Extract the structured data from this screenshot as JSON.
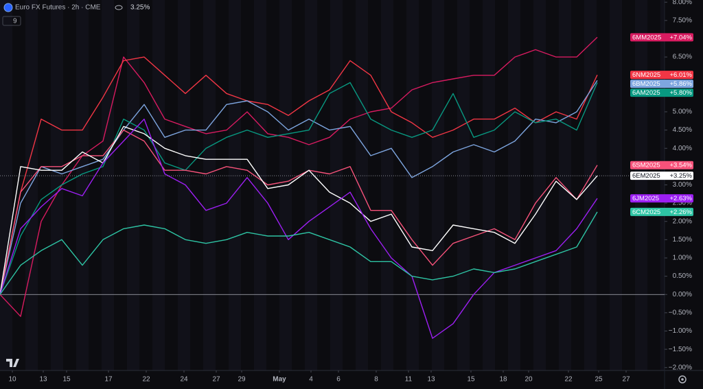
{
  "chart_data": {
    "type": "line",
    "header": {
      "title": "Euro FX Futures · 2h · CME",
      "change": "3.25%",
      "indicator_count": "9"
    },
    "x": [
      0,
      3,
      6,
      9,
      12,
      15,
      18,
      21,
      24,
      27,
      30,
      33,
      36,
      39,
      42,
      45,
      48,
      51,
      54,
      57,
      60,
      63,
      66,
      69,
      72,
      75,
      78,
      81,
      84,
      87
    ],
    "xlim": [
      0,
      96.8
    ],
    "xticks": [
      {
        "value": 1.8,
        "label": "10"
      },
      {
        "value": 6.3,
        "label": "13"
      },
      {
        "value": 9.7,
        "label": "15"
      },
      {
        "value": 15.8,
        "label": "17"
      },
      {
        "value": 21.3,
        "label": "22"
      },
      {
        "value": 26.8,
        "label": "24"
      },
      {
        "value": 31.5,
        "label": "27"
      },
      {
        "value": 35.2,
        "label": "29"
      },
      {
        "value": 40.7,
        "label": "May"
      },
      {
        "value": 45.3,
        "label": "4"
      },
      {
        "value": 49.3,
        "label": "6"
      },
      {
        "value": 54.8,
        "label": "8"
      },
      {
        "value": 59.5,
        "label": "11"
      },
      {
        "value": 62.8,
        "label": "13"
      },
      {
        "value": 68.6,
        "label": "15"
      },
      {
        "value": 73.3,
        "label": "18"
      },
      {
        "value": 77,
        "label": "20"
      },
      {
        "value": 82.8,
        "label": "22"
      },
      {
        "value": 87.2,
        "label": "25"
      },
      {
        "value": 91.2,
        "label": "27"
      }
    ],
    "ylim": [
      -2.08,
      8.06
    ],
    "yticks": [
      {
        "value": -2,
        "label": "−2.00%"
      },
      {
        "value": -1.5,
        "label": "−1.50%"
      },
      {
        "value": -1,
        "label": "−1.00%"
      },
      {
        "value": -0.5,
        "label": "−0.50%"
      },
      {
        "value": 0,
        "label": "0.00%"
      },
      {
        "value": 0.5,
        "label": "0.50%"
      },
      {
        "value": 1,
        "label": "1.00%"
      },
      {
        "value": 1.5,
        "label": "1.50%"
      },
      {
        "value": 2,
        "label": "2.00%"
      },
      {
        "value": 2.5,
        "label": "2.50%"
      },
      {
        "value": 3,
        "label": "3.00%"
      },
      {
        "value": 3.5,
        "label": "3.50%"
      },
      {
        "value": 4,
        "label": "4.00%"
      },
      {
        "value": 4.5,
        "label": "4.50%"
      },
      {
        "value": 5,
        "label": "5.00%"
      },
      {
        "value": 5.5,
        "label": "5.50%"
      },
      {
        "value": 6,
        "label": "6.00%"
      },
      {
        "value": 6.5,
        "label": "6.50%"
      },
      {
        "value": 7,
        "label": "7.00%"
      },
      {
        "value": 7.5,
        "label": "7.50%"
      },
      {
        "value": 8,
        "label": "8.00%"
      }
    ],
    "price_line": "6EM2025",
    "series": [
      {
        "name": "6MM2025",
        "color": "#d81b60",
        "last_label": "+7.04%",
        "values": [
          0,
          -0.6,
          2,
          3,
          3.8,
          4.2,
          6.5,
          5.8,
          4.8,
          4.6,
          4.4,
          4.5,
          5,
          4.4,
          4.3,
          4.1,
          4.3,
          4.8,
          5,
          5.1,
          5.6,
          5.8,
          5.9,
          6,
          6,
          6.5,
          6.7,
          6.5,
          6.5,
          7.04
        ]
      },
      {
        "name": "6NM2025",
        "color": "#f23645",
        "last_label": "+6.01%",
        "values": [
          0,
          2.8,
          4.8,
          4.5,
          4.5,
          5.4,
          6.4,
          6.5,
          6,
          5.5,
          6,
          5.5,
          5.3,
          5.2,
          4.9,
          5.3,
          5.6,
          6.4,
          6,
          5,
          4.7,
          4.3,
          4.5,
          4.8,
          4.8,
          5.1,
          4.7,
          5,
          4.8,
          6.01
        ]
      },
      {
        "name": "6BM2025",
        "color": "#7ea6e0",
        "last_label": "+5.86%",
        "values": [
          0,
          2.5,
          3.5,
          3.3,
          3.5,
          3.7,
          4.5,
          5.2,
          4.3,
          4.5,
          4.5,
          5.2,
          5.3,
          5,
          4.5,
          4.8,
          4.5,
          4.6,
          3.8,
          4,
          3.2,
          3.5,
          3.9,
          4.1,
          3.9,
          4.2,
          4.8,
          4.7,
          5,
          5.86
        ]
      },
      {
        "name": "6AM2025",
        "color": "#089981",
        "last_label": "+5.80%",
        "values": [
          0,
          1.6,
          2.6,
          3,
          3.3,
          3.5,
          4.8,
          4.5,
          3.6,
          3.4,
          4,
          4.3,
          4.5,
          4.3,
          4.4,
          4.5,
          5.5,
          5.8,
          4.8,
          4.5,
          4.3,
          4.5,
          5.5,
          4.3,
          4.5,
          5,
          4.7,
          4.8,
          4.5,
          5.8
        ]
      },
      {
        "name": "6SM2025",
        "color": "#f7527a",
        "last_label": "+3.54%",
        "values": [
          0,
          2.8,
          3.5,
          3.5,
          3.8,
          3.8,
          4.5,
          4.2,
          3.4,
          3.4,
          3.3,
          3.5,
          3.4,
          3,
          3.1,
          3.4,
          3.3,
          3.5,
          2.3,
          2.3,
          1.5,
          0.8,
          1.4,
          1.6,
          1.8,
          1.5,
          2.5,
          3.2,
          2.6,
          3.54
        ]
      },
      {
        "name": "6EM2025",
        "color": "#ffffff",
        "last_label": "+3.25%",
        "values": [
          0,
          3.5,
          3.4,
          3.4,
          3.9,
          3.6,
          4.6,
          4.4,
          4,
          3.8,
          3.7,
          3.7,
          3.7,
          2.9,
          3,
          3.4,
          2.8,
          2.5,
          2,
          2.2,
          1.3,
          1.2,
          1.9,
          1.8,
          1.7,
          1.4,
          2.2,
          3.1,
          2.6,
          3.25
        ]
      },
      {
        "name": "6JM2025",
        "color": "#9c1ff2",
        "last_label": "+2.63%",
        "values": [
          0,
          1.8,
          2.4,
          2.9,
          2.7,
          3.6,
          4.2,
          4.8,
          3.3,
          3,
          2.3,
          2.5,
          3.2,
          2.5,
          1.5,
          2,
          2.4,
          2.8,
          1.8,
          1,
          0.5,
          -1.2,
          -0.8,
          0,
          0.6,
          0.8,
          1,
          1.2,
          1.8,
          2.63
        ]
      },
      {
        "name": "6CM2025",
        "color": "#2ec4a4",
        "last_label": "+2.26%",
        "values": [
          0,
          0.8,
          1.2,
          1.5,
          0.8,
          1.5,
          1.8,
          1.9,
          1.8,
          1.5,
          1.4,
          1.5,
          1.7,
          1.6,
          1.6,
          1.7,
          1.5,
          1.3,
          0.9,
          0.9,
          0.5,
          0.4,
          0.5,
          0.7,
          0.6,
          0.7,
          0.9,
          1.1,
          1.3,
          2.26
        ]
      }
    ]
  }
}
